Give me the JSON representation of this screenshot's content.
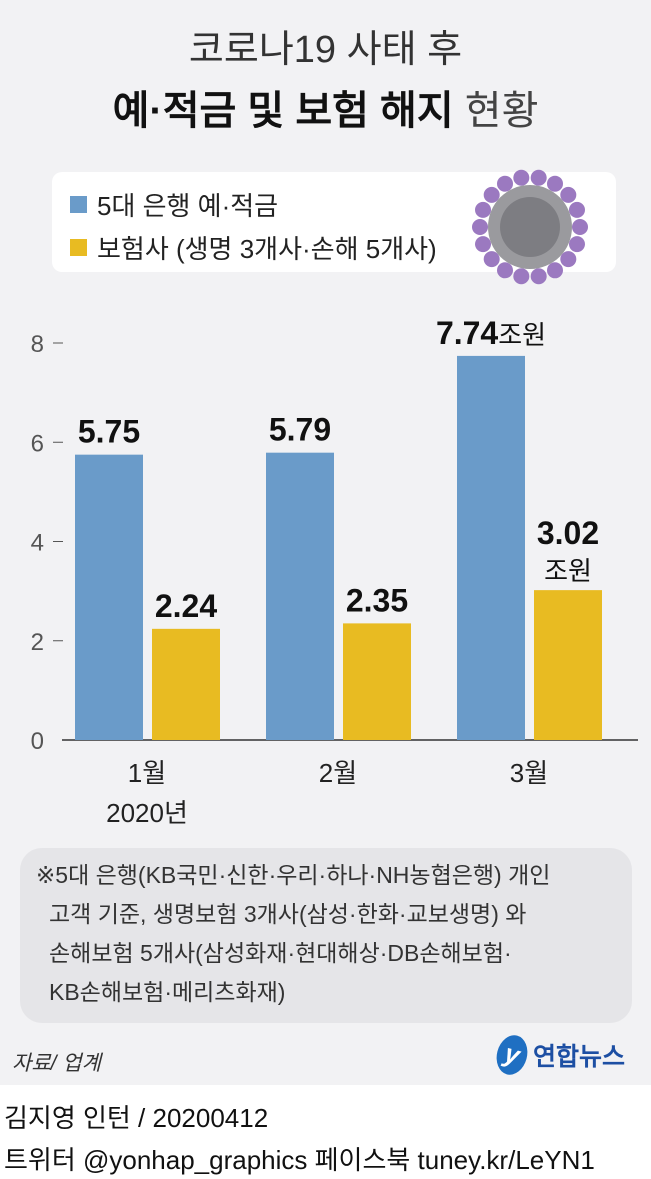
{
  "title": {
    "line1": "코로나19 사태 후",
    "line2_bold": "예·적금 및 보험 해지",
    "line2_light": "현황"
  },
  "legend": [
    {
      "label": "5대 은행 예·적금",
      "color": "#6a9bc9"
    },
    {
      "label": "보험사 (생명 3개사·손해 5개사)",
      "color": "#e8bb22"
    }
  ],
  "chart_data": {
    "type": "bar",
    "title": "코로나19 사태 후 예·적금 및 보험 해지 현황",
    "categories": [
      "1월",
      "2월",
      "3월"
    ],
    "category_sublabel": "2020년",
    "unit": "조원",
    "series": [
      {
        "name": "5대 은행 예·적금",
        "values": [
          5.75,
          5.79,
          7.74
        ],
        "color": "#6a9bc9",
        "labels": [
          "5.75",
          "5.79",
          "7.74"
        ]
      },
      {
        "name": "보험사 (생명 3개사·손해 5개사)",
        "values": [
          2.24,
          2.35,
          3.02
        ],
        "color": "#e8bb22",
        "labels": [
          "2.24",
          "2.35",
          "3.02"
        ]
      }
    ],
    "yticks": [
      "0",
      "2",
      "4",
      "6",
      "8"
    ],
    "ylim": [
      0,
      8
    ],
    "legend_position": "top"
  },
  "note": {
    "line1": "※5대 은행(KB국민·신한·우리·하나·NH농협은행) 개인",
    "line2": "고객 기준, 생명보험 3개사(삼성·한화·교보생명) 와",
    "line3": "손해보험 5개사(삼성화재·현대해상·DB손해보험·",
    "line4": "KB손해보험·메리츠화재)"
  },
  "source": "자료/ 업계",
  "logo": {
    "glyph": "y",
    "text": "연합뉴스"
  },
  "credit": "김지영 인턴 / 20200412",
  "social": "트위터 @yonhap_graphics  페이스북 tuney.kr/LeYN1"
}
